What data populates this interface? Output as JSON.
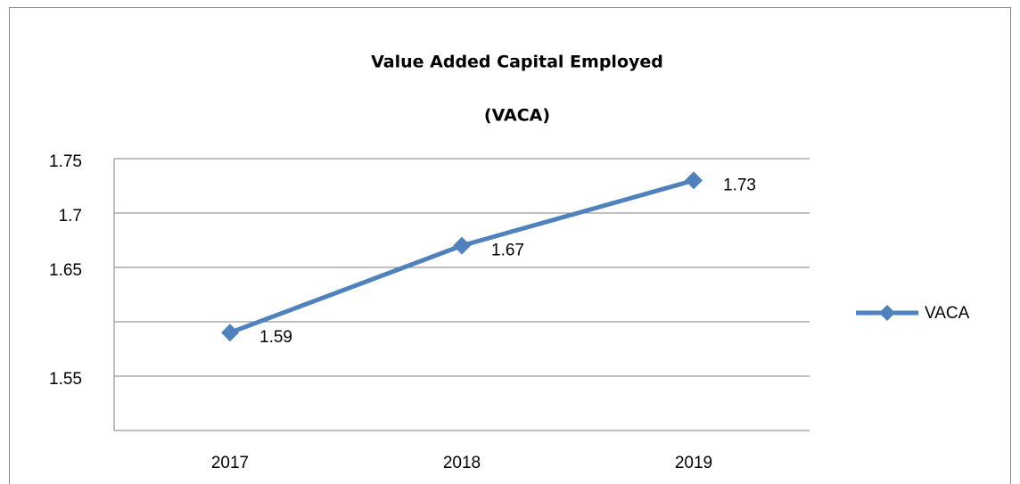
{
  "chart_data": {
    "type": "line",
    "title": "Value Added Capital Employed",
    "subtitle": "(VACA)",
    "categories": [
      "2017",
      "2018",
      "2019"
    ],
    "series": [
      {
        "name": "VACA",
        "color": "#4f81bd",
        "values": [
          1.59,
          1.67,
          1.73
        ]
      }
    ],
    "ylim": [
      1.5,
      1.75
    ],
    "yticks": [
      {
        "value": 1.5,
        "label": null
      },
      1.55,
      {
        "value": 1.6,
        "label": null
      },
      1.65,
      1.7,
      1.75
    ],
    "grid": true,
    "legend": "right"
  }
}
